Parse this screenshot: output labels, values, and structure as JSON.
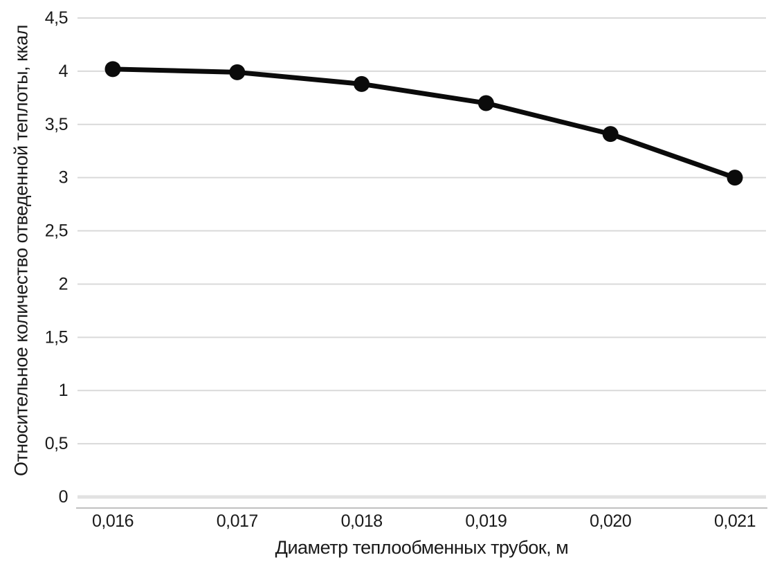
{
  "chart_data": {
    "type": "line",
    "title": "",
    "categories": [
      "0,016",
      "0,017",
      "0,018",
      "0,019",
      "0,020",
      "0,021"
    ],
    "x_numeric": [
      0.016,
      0.017,
      0.018,
      0.019,
      0.02,
      0.021
    ],
    "values": [
      4.02,
      3.99,
      3.88,
      3.7,
      3.41,
      3.0
    ],
    "xlabel": "Диаметр теплообменных трубок, м",
    "ylabel": "Относительное количество отведенной теплоты, ккал",
    "ylim": [
      0,
      4.5
    ],
    "ytick_step": 0.5,
    "yticks": [
      "0",
      "0,5",
      "1",
      "1,5",
      "2",
      "2,5",
      "3",
      "3,5",
      "4",
      "4,5"
    ],
    "grid": "horizontal-only",
    "legend": "none",
    "marker": "circle",
    "line_style": "straight-segments",
    "colors": {
      "series": "#0b0b0b",
      "gridline": "#d9d9d9",
      "zero_gridline": "#e2e2e2",
      "axis_line": "#c0c0c0",
      "text": "#1a1a1a",
      "background": "#ffffff"
    }
  }
}
